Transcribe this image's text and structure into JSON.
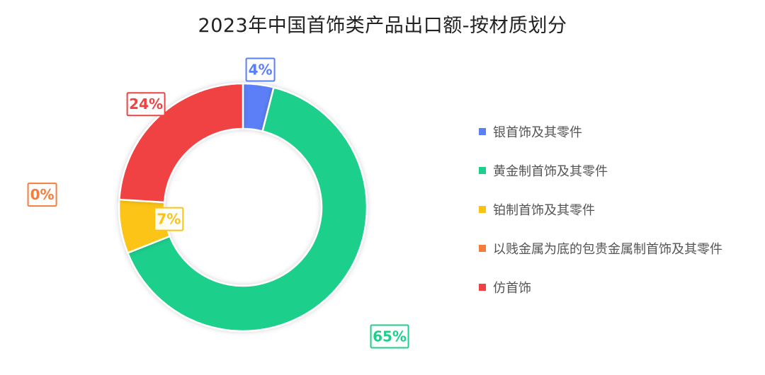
{
  "chart_data": {
    "type": "pie",
    "variant": "donut",
    "title": "2023年中国首饰类产品出口额-按材质划分",
    "unit": "%",
    "categories": [
      "银首饰及其零件",
      "黄金制首饰及其零件",
      "铂制首饰及其零件",
      "以贱金属为底的包贵金属制首饰及其零件",
      "仿首饰"
    ],
    "values": [
      4,
      65,
      7,
      0,
      24
    ],
    "labels": [
      "4%",
      "65%",
      "7%",
      "0%",
      "24%"
    ],
    "colors": [
      "#5b7ff7",
      "#1ccf8b",
      "#fbc413",
      "#f47d3c",
      "#f04242"
    ],
    "legend_position": "right"
  }
}
